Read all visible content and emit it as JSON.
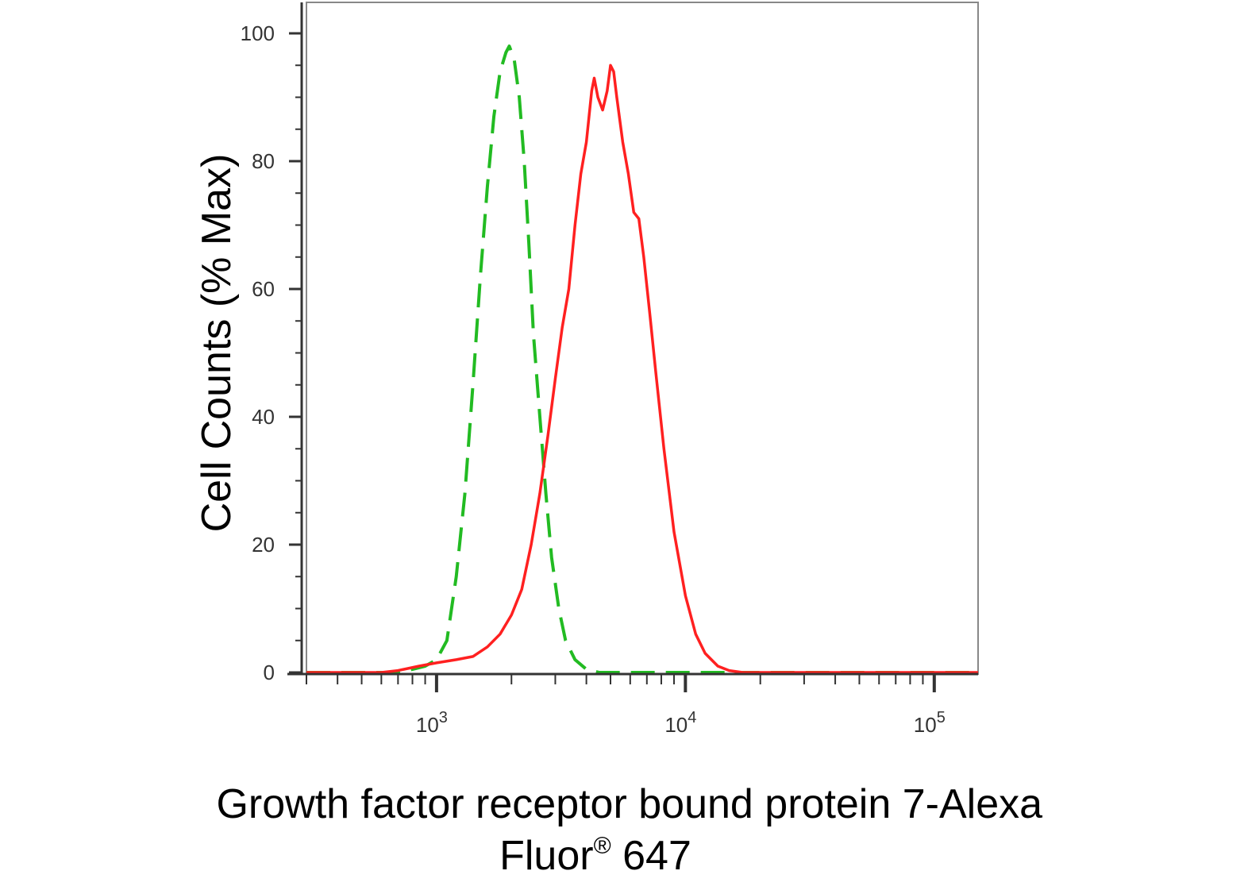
{
  "chart_data": {
    "type": "line",
    "title": "",
    "xlabel": "Growth factor receptor bound protein 7-Alexa Fluor® 647",
    "xlabel_lines": [
      "Growth factor receptor bound protein 7-Alexa",
      "Fluor",
      "®",
      " 647"
    ],
    "ylabel": "Cell Counts (% Max)",
    "xscale": "log",
    "xlim": [
      300,
      150000
    ],
    "ylim": [
      0,
      105
    ],
    "grid": false,
    "legend": "none",
    "y_ticks": [
      0,
      20,
      40,
      60,
      80,
      100
    ],
    "y_tick_labels": [
      "0",
      "20",
      "40",
      "60",
      "80",
      "100"
    ],
    "x_major_ticks": [
      1000,
      10000,
      100000
    ],
    "x_tick_labels": [
      {
        "base": "10",
        "exp": "3"
      },
      {
        "base": "10",
        "exp": "4"
      },
      {
        "base": "10",
        "exp": "5"
      }
    ],
    "series": [
      {
        "color": "#22bb22",
        "style": "dashed",
        "points": [
          [
            300,
            0
          ],
          [
            700,
            0
          ],
          [
            800,
            0.5
          ],
          [
            900,
            1
          ],
          [
            1000,
            2
          ],
          [
            1100,
            5
          ],
          [
            1200,
            15
          ],
          [
            1300,
            28
          ],
          [
            1400,
            45
          ],
          [
            1500,
            62
          ],
          [
            1600,
            76
          ],
          [
            1700,
            87
          ],
          [
            1800,
            94
          ],
          [
            1900,
            97
          ],
          [
            1960,
            98
          ],
          [
            2050,
            96
          ],
          [
            2150,
            90
          ],
          [
            2250,
            80
          ],
          [
            2350,
            67
          ],
          [
            2450,
            53
          ],
          [
            2600,
            40
          ],
          [
            2750,
            28
          ],
          [
            2900,
            18
          ],
          [
            3100,
            10
          ],
          [
            3300,
            5
          ],
          [
            3600,
            2
          ],
          [
            4000,
            0.5
          ],
          [
            4500,
            0
          ],
          [
            150000,
            0
          ]
        ]
      },
      {
        "color": "#ff2020",
        "style": "solid",
        "points": [
          [
            300,
            0
          ],
          [
            600,
            0
          ],
          [
            700,
            0.3
          ],
          [
            850,
            1
          ],
          [
            1000,
            1.5
          ],
          [
            1200,
            2
          ],
          [
            1400,
            2.5
          ],
          [
            1600,
            4
          ],
          [
            1800,
            6
          ],
          [
            2000,
            9
          ],
          [
            2200,
            13
          ],
          [
            2400,
            20
          ],
          [
            2600,
            28
          ],
          [
            2800,
            37
          ],
          [
            3000,
            46
          ],
          [
            3200,
            54
          ],
          [
            3400,
            60
          ],
          [
            3600,
            70
          ],
          [
            3800,
            78
          ],
          [
            4000,
            83
          ],
          [
            4200,
            91
          ],
          [
            4300,
            93
          ],
          [
            4450,
            90
          ],
          [
            4650,
            88
          ],
          [
            4850,
            91
          ],
          [
            5000,
            95
          ],
          [
            5150,
            94
          ],
          [
            5300,
            90
          ],
          [
            5600,
            83
          ],
          [
            5900,
            78
          ],
          [
            6200,
            72
          ],
          [
            6500,
            71
          ],
          [
            6800,
            65
          ],
          [
            7200,
            56
          ],
          [
            7600,
            47
          ],
          [
            8200,
            35
          ],
          [
            9000,
            22
          ],
          [
            10000,
            12
          ],
          [
            11000,
            6
          ],
          [
            12000,
            3
          ],
          [
            13500,
            1
          ],
          [
            15000,
            0.3
          ],
          [
            17000,
            0
          ],
          [
            150000,
            0
          ]
        ]
      }
    ]
  }
}
